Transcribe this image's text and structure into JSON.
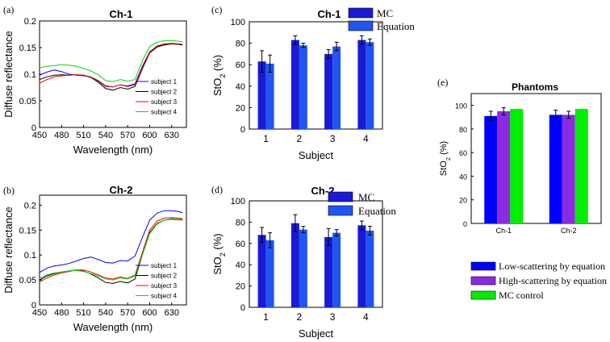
{
  "chart_data": [
    {
      "id": "a",
      "type": "line",
      "panel_label": "(a)",
      "title": "Ch-1",
      "xlabel": "Wavelength (nm)",
      "ylabel": "Diffuse reflectance",
      "xlim": [
        450,
        650
      ],
      "ylim": [
        0,
        0.2
      ],
      "xticks": [
        450,
        480,
        510,
        540,
        570,
        600,
        630
      ],
      "yticks": [
        0,
        0.05,
        0.1,
        0.15,
        0.2
      ],
      "ytick_labels": [
        "0",
        "0.05",
        "0.1",
        "0.15",
        "0.2"
      ],
      "x": [
        450,
        460,
        470,
        480,
        490,
        500,
        510,
        520,
        530,
        540,
        550,
        560,
        570,
        580,
        590,
        600,
        610,
        620,
        630,
        640,
        645
      ],
      "series": [
        {
          "name": "subject 1",
          "color": "#0000ff",
          "values": [
            0.098,
            0.104,
            0.108,
            0.105,
            0.1,
            0.098,
            0.097,
            0.095,
            0.088,
            0.078,
            0.076,
            0.08,
            0.078,
            0.082,
            0.115,
            0.142,
            0.152,
            0.156,
            0.157,
            0.156,
            0.155
          ]
        },
        {
          "name": "subject 2",
          "color": "#000000",
          "values": [
            0.09,
            0.095,
            0.098,
            0.099,
            0.098,
            0.099,
            0.098,
            0.094,
            0.085,
            0.073,
            0.07,
            0.075,
            0.072,
            0.077,
            0.11,
            0.14,
            0.151,
            0.155,
            0.157,
            0.156,
            0.155
          ]
        },
        {
          "name": "subject 3",
          "color": "#ff0000",
          "values": [
            0.083,
            0.09,
            0.095,
            0.097,
            0.098,
            0.099,
            0.098,
            0.095,
            0.087,
            0.077,
            0.076,
            0.08,
            0.077,
            0.08,
            0.112,
            0.142,
            0.153,
            0.157,
            0.158,
            0.157,
            0.156
          ]
        },
        {
          "name": "subject 4",
          "color": "#00dd00",
          "values": [
            0.112,
            0.115,
            0.116,
            0.118,
            0.117,
            0.115,
            0.111,
            0.106,
            0.099,
            0.088,
            0.086,
            0.09,
            0.087,
            0.09,
            0.125,
            0.152,
            0.16,
            0.163,
            0.163,
            0.162,
            0.161
          ]
        }
      ]
    },
    {
      "id": "b",
      "type": "line",
      "panel_label": "(b)",
      "title": "Ch-2",
      "xlabel": "Wavelength (nm)",
      "ylabel": "Diffuse reflectance",
      "xlim": [
        450,
        650
      ],
      "ylim": [
        0,
        0.22
      ],
      "xticks": [
        450,
        480,
        510,
        540,
        570,
        600,
        630
      ],
      "yticks": [
        0,
        0.05,
        0.1,
        0.15,
        0.2
      ],
      "ytick_labels": [
        "0",
        "0.05",
        "0.1",
        "0.15",
        "0.2"
      ],
      "x": [
        450,
        460,
        470,
        480,
        490,
        500,
        510,
        520,
        530,
        540,
        550,
        560,
        570,
        580,
        590,
        600,
        610,
        620,
        630,
        640,
        645
      ],
      "series": [
        {
          "name": "subject 1",
          "color": "#0000ff",
          "values": [
            0.065,
            0.074,
            0.078,
            0.08,
            0.083,
            0.088,
            0.093,
            0.096,
            0.091,
            0.085,
            0.084,
            0.089,
            0.088,
            0.098,
            0.135,
            0.17,
            0.184,
            0.189,
            0.189,
            0.187,
            0.185
          ]
        },
        {
          "name": "subject 2",
          "color": "#000000",
          "values": [
            0.05,
            0.058,
            0.063,
            0.066,
            0.068,
            0.07,
            0.068,
            0.062,
            0.054,
            0.045,
            0.043,
            0.047,
            0.044,
            0.052,
            0.1,
            0.145,
            0.163,
            0.17,
            0.172,
            0.171,
            0.17
          ]
        },
        {
          "name": "subject 3",
          "color": "#ff0000",
          "values": [
            0.046,
            0.054,
            0.06,
            0.064,
            0.067,
            0.07,
            0.07,
            0.066,
            0.06,
            0.054,
            0.052,
            0.056,
            0.053,
            0.06,
            0.105,
            0.15,
            0.168,
            0.174,
            0.175,
            0.174,
            0.173
          ]
        },
        {
          "name": "subject 4",
          "color": "#00dd00",
          "values": [
            0.053,
            0.06,
            0.064,
            0.066,
            0.068,
            0.069,
            0.067,
            0.063,
            0.058,
            0.052,
            0.05,
            0.054,
            0.052,
            0.058,
            0.1,
            0.143,
            0.162,
            0.17,
            0.173,
            0.172,
            0.171
          ]
        }
      ]
    },
    {
      "id": "c",
      "type": "bar",
      "panel_label": "(c)",
      "title": "Ch-1",
      "xlabel": "Subject",
      "ylabel": "StO2 (%)",
      "ylim": [
        0,
        100
      ],
      "yticks": [
        0,
        20,
        40,
        60,
        80,
        100
      ],
      "categories": [
        "1",
        "2",
        "3",
        "4"
      ],
      "series": [
        {
          "name": "MC",
          "color": "#1a1ad6",
          "values": [
            63,
            83,
            70,
            83
          ],
          "errors": [
            10,
            4,
            4,
            4
          ]
        },
        {
          "name": "Equation",
          "color": "#1f55f2",
          "values": [
            61,
            78,
            77,
            81
          ],
          "errors": [
            8,
            2,
            4,
            3
          ]
        }
      ]
    },
    {
      "id": "d",
      "type": "bar",
      "panel_label": "(d)",
      "title": "Ch-2",
      "xlabel": "Subject",
      "ylabel": "StO2 (%)",
      "ylim": [
        0,
        100
      ],
      "yticks": [
        0,
        20,
        40,
        60,
        80,
        100
      ],
      "categories": [
        "1",
        "2",
        "3",
        "4"
      ],
      "series": [
        {
          "name": "MC",
          "color": "#1a1ad6",
          "values": [
            68,
            79,
            66,
            77
          ],
          "errors": [
            7,
            8,
            8,
            4
          ]
        },
        {
          "name": "Equation",
          "color": "#1f55f2",
          "values": [
            63,
            73,
            70,
            72
          ],
          "errors": [
            7,
            3,
            3,
            4
          ]
        }
      ]
    },
    {
      "id": "e",
      "type": "bar",
      "panel_label": "(e)",
      "title": "Phantoms",
      "xlabel": "",
      "ylabel": "StO2 (%)",
      "ylim": [
        0,
        110
      ],
      "yticks": [
        0,
        20,
        40,
        60,
        80,
        100
      ],
      "categories": [
        "Ch-1",
        "Ch-2"
      ],
      "series": [
        {
          "name": "Low-scattering by equation",
          "color": "#0000ff",
          "values": [
            91,
            92
          ],
          "errors": [
            4,
            4
          ]
        },
        {
          "name": "High-scattering by equation",
          "color": "#8a2be2",
          "values": [
            95,
            92
          ],
          "errors": [
            3,
            3
          ]
        },
        {
          "name": "MC control",
          "color": "#00ee00",
          "values": [
            97,
            97
          ],
          "errors": [
            0,
            0
          ]
        }
      ]
    }
  ]
}
